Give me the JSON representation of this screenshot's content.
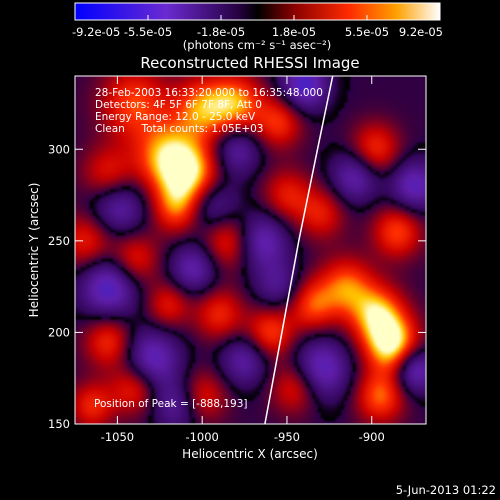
{
  "chart_data": {
    "type": "heatmap",
    "title": "Reconstructed RHESSI Image",
    "xlabel": "Heliocentric X (arcsec)",
    "ylabel": "Heliocentric Y (arcsec)",
    "xlim": [
      -1075,
      -868
    ],
    "ylim": [
      150,
      340
    ],
    "xticks": [
      -1050,
      -1000,
      -950,
      -900
    ],
    "yticks": [
      150,
      200,
      250,
      300
    ],
    "colorbar": {
      "ticks": [
        "-9.2e-05",
        "-5.5e-05",
        "-1.8e-05",
        "1.8e-05",
        "5.5e-05",
        "9.2e-05"
      ],
      "unit": "(photons cm⁻² s⁻¹ asec⁻²)",
      "range": [
        -9.2e-05,
        9.2e-05
      ]
    },
    "info_lines": [
      "28-Feb-2003 16:33:20.000 to 16:35:48.000",
      "Detectors: 4F 5F 6F 7F 8F, Att 0",
      "Energy Range: 12.0 - 25.0 keV",
      "Clean     Total counts: 1.05E+03"
    ],
    "peak_label": "Position of Peak = [-888,193]",
    "limb_points": [
      [
        -963,
        150
      ],
      [
        -953,
        200
      ],
      [
        -943,
        250
      ],
      [
        -932,
        300
      ],
      [
        -923,
        340
      ]
    ],
    "blobs": [
      {
        "x": -1040,
        "y": 325,
        "amp": 0.6,
        "s": 14
      },
      {
        "x": -1020,
        "y": 295,
        "amp": 0.85,
        "s": 13
      },
      {
        "x": -1000,
        "y": 322,
        "amp": 0.7,
        "s": 12
      },
      {
        "x": -1005,
        "y": 285,
        "amp": 0.75,
        "s": 12
      },
      {
        "x": -980,
        "y": 325,
        "amp": 0.7,
        "s": 11
      },
      {
        "x": -1055,
        "y": 285,
        "amp": 0.55,
        "s": 11
      },
      {
        "x": -1015,
        "y": 268,
        "amp": 0.6,
        "s": 10
      },
      {
        "x": -1068,
        "y": 250,
        "amp": 0.5,
        "s": 11
      },
      {
        "x": -1040,
        "y": 240,
        "amp": 0.5,
        "s": 10
      },
      {
        "x": -985,
        "y": 250,
        "amp": 0.55,
        "s": 11
      },
      {
        "x": -950,
        "y": 275,
        "amp": 0.45,
        "s": 10
      },
      {
        "x": -955,
        "y": 315,
        "amp": 0.55,
        "s": 10
      },
      {
        "x": -930,
        "y": 265,
        "amp": 0.45,
        "s": 10
      },
      {
        "x": -898,
        "y": 300,
        "amp": 0.55,
        "s": 10
      },
      {
        "x": -885,
        "y": 255,
        "amp": 0.6,
        "s": 10
      },
      {
        "x": -915,
        "y": 225,
        "amp": 0.65,
        "s": 11
      },
      {
        "x": -897,
        "y": 210,
        "amp": 0.8,
        "s": 11
      },
      {
        "x": -888,
        "y": 193,
        "amp": 1.0,
        "s": 11
      },
      {
        "x": -895,
        "y": 165,
        "amp": 0.65,
        "s": 10
      },
      {
        "x": -935,
        "y": 215,
        "amp": 0.6,
        "s": 10
      },
      {
        "x": -960,
        "y": 200,
        "amp": 0.6,
        "s": 10
      },
      {
        "x": -945,
        "y": 170,
        "amp": 0.5,
        "s": 10
      },
      {
        "x": -1055,
        "y": 195,
        "amp": 0.55,
        "s": 10
      },
      {
        "x": -1040,
        "y": 170,
        "amp": 0.55,
        "s": 10
      },
      {
        "x": -1020,
        "y": 215,
        "amp": 0.45,
        "s": 9
      },
      {
        "x": -990,
        "y": 210,
        "amp": 0.5,
        "s": 10
      },
      {
        "x": -1000,
        "y": 165,
        "amp": 0.45,
        "s": 10
      },
      {
        "x": -1065,
        "y": 160,
        "amp": 0.5,
        "s": 9
      },
      {
        "x": -1050,
        "y": 270,
        "amp": -0.6,
        "s": 12
      },
      {
        "x": -1055,
        "y": 225,
        "amp": -0.7,
        "s": 12
      },
      {
        "x": -1030,
        "y": 185,
        "amp": -0.65,
        "s": 12
      },
      {
        "x": -995,
        "y": 270,
        "amp": -0.55,
        "s": 11
      },
      {
        "x": -980,
        "y": 300,
        "amp": -0.5,
        "s": 10
      },
      {
        "x": -965,
        "y": 250,
        "amp": -0.6,
        "s": 11
      },
      {
        "x": -940,
        "y": 335,
        "amp": -0.7,
        "s": 10
      },
      {
        "x": -930,
        "y": 180,
        "amp": -0.65,
        "s": 12
      },
      {
        "x": -910,
        "y": 285,
        "amp": -0.55,
        "s": 10
      },
      {
        "x": -875,
        "y": 280,
        "amp": -0.6,
        "s": 10
      },
      {
        "x": -875,
        "y": 180,
        "amp": -0.7,
        "s": 9
      },
      {
        "x": -1005,
        "y": 235,
        "amp": -0.55,
        "s": 10
      },
      {
        "x": -975,
        "y": 185,
        "amp": -0.5,
        "s": 10
      },
      {
        "x": -1015,
        "y": 160,
        "amp": -0.45,
        "s": 10
      },
      {
        "x": -955,
        "y": 225,
        "amp": -0.4,
        "s": 10
      }
    ]
  },
  "footer": {
    "date": "5-Jun-2013 01:22"
  }
}
